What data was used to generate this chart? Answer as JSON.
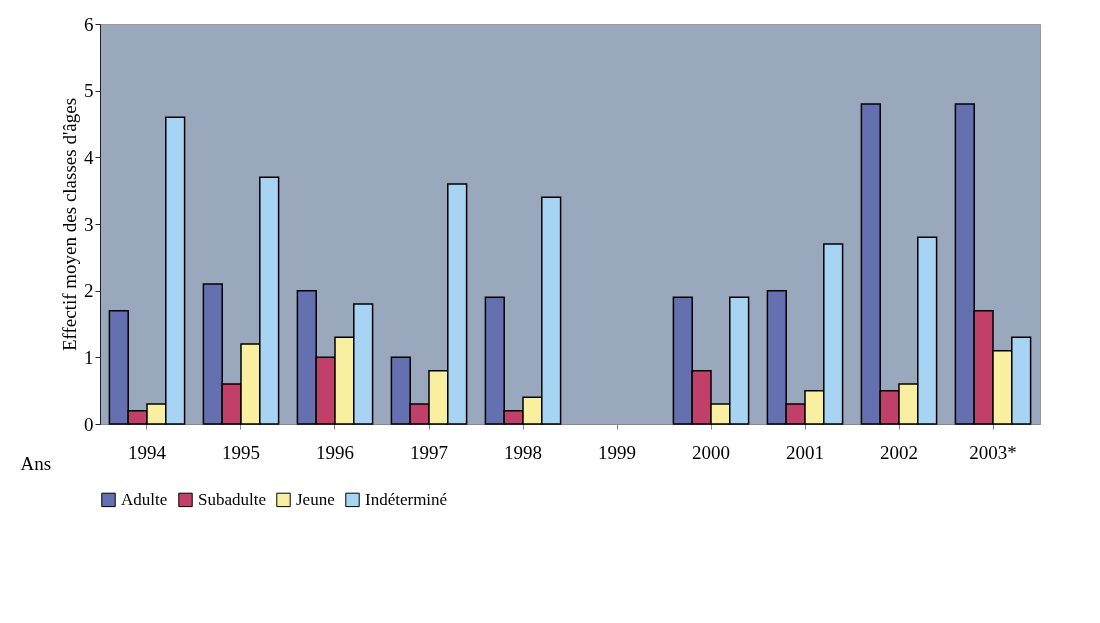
{
  "chart_data": {
    "type": "bar",
    "categories": [
      "1994",
      "1995",
      "1996",
      "1997",
      "1998",
      "1999",
      "2000",
      "2001",
      "2002",
      "2003*"
    ],
    "series": [
      {
        "name": "Adulte",
        "color": "#6470b0",
        "values": [
          1.7,
          2.1,
          2.0,
          1.0,
          1.9,
          null,
          1.9,
          2.0,
          4.8,
          4.8
        ]
      },
      {
        "name": "Subadulte",
        "color": "#c0406a",
        "values": [
          0.2,
          0.6,
          1.0,
          0.3,
          0.2,
          null,
          0.8,
          0.3,
          0.5,
          1.7
        ]
      },
      {
        "name": "Jeune",
        "color": "#f8f0a0",
        "values": [
          0.3,
          1.2,
          1.3,
          0.8,
          0.4,
          null,
          0.3,
          0.5,
          0.6,
          1.1
        ]
      },
      {
        "name": "Indéterminé",
        "color": "#a8d4f4",
        "values": [
          4.6,
          3.7,
          1.8,
          3.6,
          3.4,
          null,
          1.9,
          2.7,
          2.8,
          1.3
        ]
      }
    ],
    "xlabel": "Ans",
    "ylabel": "Effectif moyen des classes d'âges",
    "ylim": [
      0,
      6
    ],
    "yticks": [
      0,
      1,
      2,
      3,
      4,
      5,
      6
    ],
    "grid": false,
    "legend": "bottom"
  }
}
